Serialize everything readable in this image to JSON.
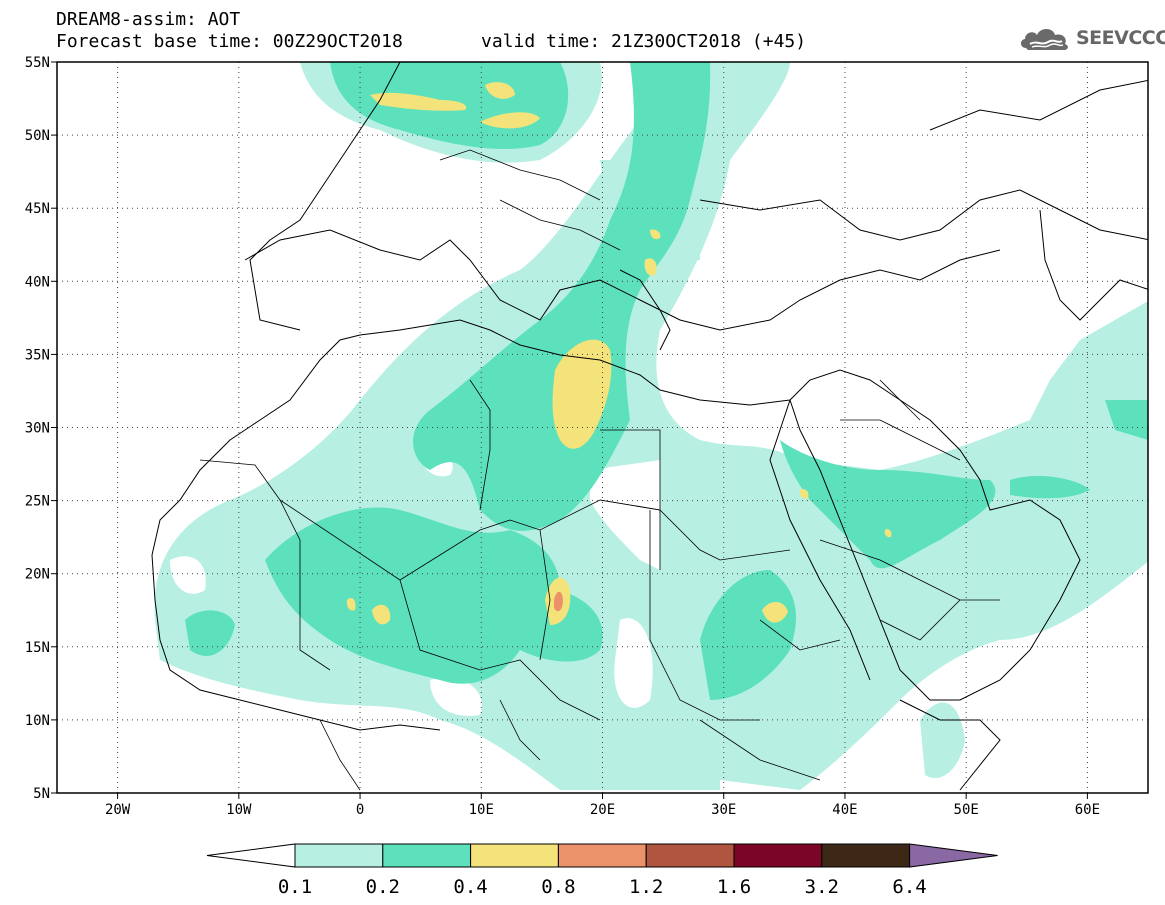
{
  "header": {
    "line1": "DREAM8-assim: AOT",
    "line2": "Forecast base time: 00Z29OCT2018",
    "valid_time": "valid time: 21Z30OCT2018 (+45)"
  },
  "logo": {
    "text": "SEEVCCC",
    "icon": "cloud-icon"
  },
  "map": {
    "lat_labels": [
      "55N",
      "50N",
      "45N",
      "40N",
      "35N",
      "30N",
      "25N",
      "20N",
      "15N",
      "10N",
      "5N"
    ],
    "lon_labels": [
      "20W",
      "10W",
      "0",
      "10E",
      "20E",
      "30E",
      "40E",
      "50E",
      "60E"
    ],
    "lon_range": [
      -25,
      65
    ],
    "lat_range": [
      5,
      55
    ],
    "grid": true
  },
  "colorbar": {
    "labels": [
      "0.1",
      "0.2",
      "0.4",
      "0.8",
      "1.2",
      "1.6",
      "3.2",
      "6.4"
    ],
    "colors": [
      "#ffffff",
      "#b7f0e3",
      "#5ce1bc",
      "#f4e37a",
      "#ec926a",
      "#b0553f",
      "#7a0527",
      "#3d2716",
      "#8a68a4"
    ]
  }
}
